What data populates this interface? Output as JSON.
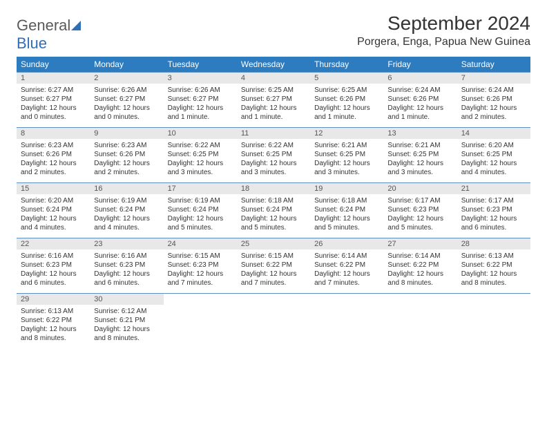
{
  "logo": {
    "text1": "General",
    "text2": "Blue"
  },
  "title": "September 2024",
  "location": "Porgera, Enga, Papua New Guinea",
  "colors": {
    "header_bg": "#2e7cc0",
    "header_text": "#ffffff",
    "daynum_bg": "#e8e8e8",
    "border": "#5a8fc0",
    "text": "#333333",
    "logo_gray": "#5a5a5a",
    "logo_blue": "#2e6fb7"
  },
  "day_names": [
    "Sunday",
    "Monday",
    "Tuesday",
    "Wednesday",
    "Thursday",
    "Friday",
    "Saturday"
  ],
  "weeks": [
    [
      {
        "n": "1",
        "sr": "Sunrise: 6:27 AM",
        "ss": "Sunset: 6:27 PM",
        "dl": "Daylight: 12 hours and 0 minutes."
      },
      {
        "n": "2",
        "sr": "Sunrise: 6:26 AM",
        "ss": "Sunset: 6:27 PM",
        "dl": "Daylight: 12 hours and 0 minutes."
      },
      {
        "n": "3",
        "sr": "Sunrise: 6:26 AM",
        "ss": "Sunset: 6:27 PM",
        "dl": "Daylight: 12 hours and 1 minute."
      },
      {
        "n": "4",
        "sr": "Sunrise: 6:25 AM",
        "ss": "Sunset: 6:27 PM",
        "dl": "Daylight: 12 hours and 1 minute."
      },
      {
        "n": "5",
        "sr": "Sunrise: 6:25 AM",
        "ss": "Sunset: 6:26 PM",
        "dl": "Daylight: 12 hours and 1 minute."
      },
      {
        "n": "6",
        "sr": "Sunrise: 6:24 AM",
        "ss": "Sunset: 6:26 PM",
        "dl": "Daylight: 12 hours and 1 minute."
      },
      {
        "n": "7",
        "sr": "Sunrise: 6:24 AM",
        "ss": "Sunset: 6:26 PM",
        "dl": "Daylight: 12 hours and 2 minutes."
      }
    ],
    [
      {
        "n": "8",
        "sr": "Sunrise: 6:23 AM",
        "ss": "Sunset: 6:26 PM",
        "dl": "Daylight: 12 hours and 2 minutes."
      },
      {
        "n": "9",
        "sr": "Sunrise: 6:23 AM",
        "ss": "Sunset: 6:26 PM",
        "dl": "Daylight: 12 hours and 2 minutes."
      },
      {
        "n": "10",
        "sr": "Sunrise: 6:22 AM",
        "ss": "Sunset: 6:25 PM",
        "dl": "Daylight: 12 hours and 3 minutes."
      },
      {
        "n": "11",
        "sr": "Sunrise: 6:22 AM",
        "ss": "Sunset: 6:25 PM",
        "dl": "Daylight: 12 hours and 3 minutes."
      },
      {
        "n": "12",
        "sr": "Sunrise: 6:21 AM",
        "ss": "Sunset: 6:25 PM",
        "dl": "Daylight: 12 hours and 3 minutes."
      },
      {
        "n": "13",
        "sr": "Sunrise: 6:21 AM",
        "ss": "Sunset: 6:25 PM",
        "dl": "Daylight: 12 hours and 3 minutes."
      },
      {
        "n": "14",
        "sr": "Sunrise: 6:20 AM",
        "ss": "Sunset: 6:25 PM",
        "dl": "Daylight: 12 hours and 4 minutes."
      }
    ],
    [
      {
        "n": "15",
        "sr": "Sunrise: 6:20 AM",
        "ss": "Sunset: 6:24 PM",
        "dl": "Daylight: 12 hours and 4 minutes."
      },
      {
        "n": "16",
        "sr": "Sunrise: 6:19 AM",
        "ss": "Sunset: 6:24 PM",
        "dl": "Daylight: 12 hours and 4 minutes."
      },
      {
        "n": "17",
        "sr": "Sunrise: 6:19 AM",
        "ss": "Sunset: 6:24 PM",
        "dl": "Daylight: 12 hours and 5 minutes."
      },
      {
        "n": "18",
        "sr": "Sunrise: 6:18 AM",
        "ss": "Sunset: 6:24 PM",
        "dl": "Daylight: 12 hours and 5 minutes."
      },
      {
        "n": "19",
        "sr": "Sunrise: 6:18 AM",
        "ss": "Sunset: 6:24 PM",
        "dl": "Daylight: 12 hours and 5 minutes."
      },
      {
        "n": "20",
        "sr": "Sunrise: 6:17 AM",
        "ss": "Sunset: 6:23 PM",
        "dl": "Daylight: 12 hours and 5 minutes."
      },
      {
        "n": "21",
        "sr": "Sunrise: 6:17 AM",
        "ss": "Sunset: 6:23 PM",
        "dl": "Daylight: 12 hours and 6 minutes."
      }
    ],
    [
      {
        "n": "22",
        "sr": "Sunrise: 6:16 AM",
        "ss": "Sunset: 6:23 PM",
        "dl": "Daylight: 12 hours and 6 minutes."
      },
      {
        "n": "23",
        "sr": "Sunrise: 6:16 AM",
        "ss": "Sunset: 6:23 PM",
        "dl": "Daylight: 12 hours and 6 minutes."
      },
      {
        "n": "24",
        "sr": "Sunrise: 6:15 AM",
        "ss": "Sunset: 6:23 PM",
        "dl": "Daylight: 12 hours and 7 minutes."
      },
      {
        "n": "25",
        "sr": "Sunrise: 6:15 AM",
        "ss": "Sunset: 6:22 PM",
        "dl": "Daylight: 12 hours and 7 minutes."
      },
      {
        "n": "26",
        "sr": "Sunrise: 6:14 AM",
        "ss": "Sunset: 6:22 PM",
        "dl": "Daylight: 12 hours and 7 minutes."
      },
      {
        "n": "27",
        "sr": "Sunrise: 6:14 AM",
        "ss": "Sunset: 6:22 PM",
        "dl": "Daylight: 12 hours and 8 minutes."
      },
      {
        "n": "28",
        "sr": "Sunrise: 6:13 AM",
        "ss": "Sunset: 6:22 PM",
        "dl": "Daylight: 12 hours and 8 minutes."
      }
    ],
    [
      {
        "n": "29",
        "sr": "Sunrise: 6:13 AM",
        "ss": "Sunset: 6:22 PM",
        "dl": "Daylight: 12 hours and 8 minutes."
      },
      {
        "n": "30",
        "sr": "Sunrise: 6:12 AM",
        "ss": "Sunset: 6:21 PM",
        "dl": "Daylight: 12 hours and 8 minutes."
      },
      null,
      null,
      null,
      null,
      null
    ]
  ]
}
